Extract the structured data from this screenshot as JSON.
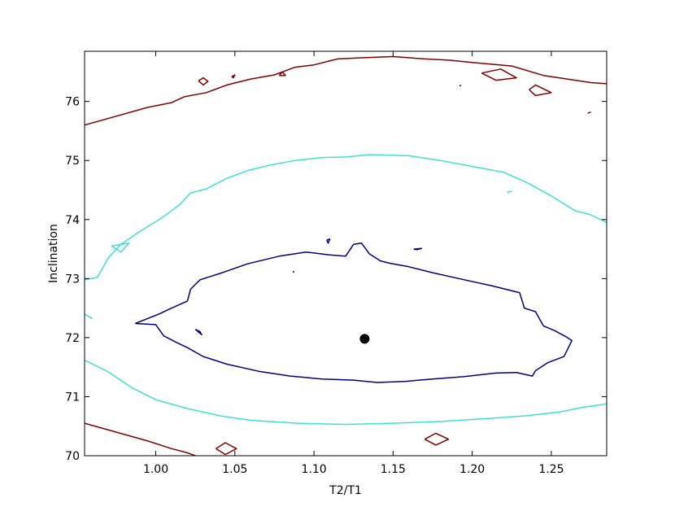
{
  "chart_data": {
    "type": "contour",
    "title": "",
    "xlabel": "T2/T1",
    "ylabel": "Inclination",
    "xlim": [
      0.955,
      1.285
    ],
    "ylim": [
      70.0,
      76.85
    ],
    "x_ticks": [
      {
        "value": 1.0,
        "label": "1.00"
      },
      {
        "value": 1.05,
        "label": "1.05"
      },
      {
        "value": 1.1,
        "label": "1.10"
      },
      {
        "value": 1.15,
        "label": "1.15"
      },
      {
        "value": 1.2,
        "label": "1.20"
      },
      {
        "value": 1.25,
        "label": "1.25"
      }
    ],
    "y_ticks": [
      {
        "value": 70,
        "label": "70"
      },
      {
        "value": 71,
        "label": "71"
      },
      {
        "value": 72,
        "label": "72"
      },
      {
        "value": 73,
        "label": "73"
      },
      {
        "value": 74,
        "label": "74"
      },
      {
        "value": 75,
        "label": "75"
      },
      {
        "value": 76,
        "label": "76"
      }
    ],
    "grid": false,
    "legend": "none",
    "best_fit_point": {
      "x": 1.132,
      "y": 71.98,
      "color": "#000000"
    },
    "contours": [
      {
        "level": "inner",
        "color": "#000080",
        "paths": [
          [
            [
              0.987,
              72.24
            ],
            [
              1.0,
              72.22
            ],
            [
              1.005,
              72.03
            ],
            [
              1.013,
              71.92
            ],
            [
              1.02,
              71.83
            ],
            [
              1.03,
              71.68
            ],
            [
              1.045,
              71.55
            ],
            [
              1.065,
              71.43
            ],
            [
              1.085,
              71.35
            ],
            [
              1.105,
              71.3
            ],
            [
              1.125,
              71.28
            ],
            [
              1.14,
              71.24
            ],
            [
              1.158,
              71.26
            ],
            [
              1.175,
              71.3
            ],
            [
              1.195,
              71.34
            ],
            [
              1.215,
              71.4
            ],
            [
              1.228,
              71.41
            ],
            [
              1.238,
              71.35
            ],
            [
              1.24,
              71.44
            ],
            [
              1.248,
              71.58
            ],
            [
              1.258,
              71.68
            ],
            [
              1.263,
              71.95
            ],
            [
              1.259,
              72.02
            ],
            [
              1.252,
              72.12
            ],
            [
              1.245,
              72.2
            ],
            [
              1.24,
              72.44
            ],
            [
              1.233,
              72.5
            ],
            [
              1.23,
              72.76
            ],
            [
              1.212,
              72.88
            ],
            [
              1.195,
              72.98
            ],
            [
              1.175,
              73.1
            ],
            [
              1.16,
              73.2
            ],
            [
              1.148,
              73.26
            ],
            [
              1.142,
              73.3
            ],
            [
              1.135,
              73.42
            ],
            [
              1.13,
              73.6
            ],
            [
              1.125,
              73.58
            ],
            [
              1.12,
              73.38
            ],
            [
              1.11,
              73.4
            ],
            [
              1.095,
              73.45
            ],
            [
              1.078,
              73.38
            ],
            [
              1.058,
              73.25
            ],
            [
              1.042,
              73.1
            ],
            [
              1.028,
              72.98
            ],
            [
              1.022,
              72.82
            ],
            [
              1.02,
              72.62
            ],
            [
              1.01,
              72.5
            ],
            [
              1.002,
              72.4
            ],
            [
              0.987,
              72.24
            ]
          ],
          [
            [
              1.025,
              72.14
            ],
            [
              1.028,
              72.1
            ],
            [
              1.029,
              72.05
            ],
            [
              1.025,
              72.14
            ]
          ],
          [
            [
              1.108,
              73.65
            ],
            [
              1.109,
              73.6
            ],
            [
              1.11,
              73.67
            ],
            [
              1.108,
              73.65
            ]
          ],
          [
            [
              1.163,
              73.5
            ],
            [
              1.168,
              73.51
            ],
            [
              1.165,
              73.49
            ],
            [
              1.163,
              73.5
            ]
          ],
          [
            [
              1.087,
              73.1
            ],
            [
              1.087,
              73.13
            ]
          ]
        ]
      },
      {
        "level": "middle",
        "color": "#40e0d0",
        "paths": [
          [
            [
              0.955,
              72.98
            ],
            [
              0.963,
              73.02
            ],
            [
              0.97,
              73.35
            ],
            [
              0.978,
              73.58
            ],
            [
              0.99,
              73.8
            ],
            [
              1.005,
              74.05
            ],
            [
              1.015,
              74.25
            ],
            [
              1.022,
              74.45
            ],
            [
              1.032,
              74.52
            ],
            [
              1.045,
              74.7
            ],
            [
              1.058,
              74.83
            ],
            [
              1.072,
              74.92
            ],
            [
              1.088,
              75.0
            ],
            [
              1.105,
              75.05
            ],
            [
              1.12,
              75.06
            ],
            [
              1.135,
              75.1
            ],
            [
              1.16,
              75.08
            ],
            [
              1.18,
              75.0
            ],
            [
              1.2,
              74.9
            ],
            [
              1.22,
              74.8
            ],
            [
              1.235,
              74.62
            ],
            [
              1.25,
              74.4
            ],
            [
              1.265,
              74.15
            ],
            [
              1.275,
              74.08
            ],
            [
              1.285,
              73.95
            ]
          ],
          [
            [
              0.955,
              72.4
            ],
            [
              0.96,
              72.32
            ]
          ],
          [
            [
              0.955,
              71.62
            ],
            [
              0.97,
              71.42
            ],
            [
              0.985,
              71.15
            ],
            [
              1.0,
              70.95
            ],
            [
              1.02,
              70.8
            ],
            [
              1.04,
              70.68
            ],
            [
              1.06,
              70.6
            ],
            [
              1.09,
              70.55
            ],
            [
              1.12,
              70.53
            ],
            [
              1.15,
              70.55
            ],
            [
              1.18,
              70.58
            ],
            [
              1.21,
              70.63
            ],
            [
              1.235,
              70.68
            ],
            [
              1.255,
              70.74
            ],
            [
              1.27,
              70.82
            ],
            [
              1.285,
              70.88
            ]
          ],
          [
            [
              0.972,
              73.55
            ],
            [
              0.978,
              73.45
            ],
            [
              0.983,
              73.6
            ],
            [
              0.972,
              73.55
            ]
          ],
          [
            [
              1.222,
              74.46
            ],
            [
              1.225,
              74.48
            ]
          ]
        ]
      },
      {
        "level": "outer",
        "color": "#800000",
        "paths": [
          [
            [
              0.955,
              75.6
            ],
            [
              0.975,
              75.75
            ],
            [
              0.995,
              75.9
            ],
            [
              1.01,
              75.98
            ],
            [
              1.018,
              76.08
            ],
            [
              1.032,
              76.15
            ],
            [
              1.045,
              76.28
            ],
            [
              1.06,
              76.38
            ],
            [
              1.075,
              76.45
            ],
            [
              1.088,
              76.58
            ],
            [
              1.1,
              76.62
            ],
            [
              1.115,
              76.72
            ],
            [
              1.13,
              76.74
            ],
            [
              1.15,
              76.76
            ],
            [
              1.17,
              76.72
            ],
            [
              1.185,
              76.7
            ],
            [
              1.2,
              76.66
            ],
            [
              1.225,
              76.6
            ],
            [
              1.245,
              76.44
            ],
            [
              1.26,
              76.38
            ],
            [
              1.275,
              76.32
            ],
            [
              1.285,
              76.3
            ]
          ],
          [
            [
              0.955,
              70.55
            ],
            [
              0.975,
              70.4
            ],
            [
              0.995,
              70.25
            ],
            [
              1.01,
              70.12
            ],
            [
              1.02,
              70.05
            ],
            [
              1.025,
              70.0
            ]
          ],
          [
            [
              1.038,
              70.12
            ],
            [
              1.044,
              70.22
            ],
            [
              1.051,
              70.12
            ],
            [
              1.044,
              70.02
            ],
            [
              1.038,
              70.12
            ]
          ],
          [
            [
              1.17,
              70.28
            ],
            [
              1.177,
              70.38
            ],
            [
              1.185,
              70.28
            ],
            [
              1.177,
              70.18
            ],
            [
              1.17,
              70.28
            ]
          ],
          [
            [
              1.027,
              76.35
            ],
            [
              1.03,
              76.4
            ],
            [
              1.033,
              76.34
            ],
            [
              1.03,
              76.28
            ],
            [
              1.027,
              76.35
            ]
          ],
          [
            [
              1.048,
              76.42
            ],
            [
              1.05,
              76.45
            ],
            [
              1.049,
              76.4
            ],
            [
              1.048,
              76.42
            ]
          ],
          [
            [
              1.078,
              76.44
            ],
            [
              1.08,
              76.5
            ],
            [
              1.082,
              76.44
            ],
            [
              1.078,
              76.44
            ]
          ],
          [
            [
              1.236,
              76.2
            ],
            [
              1.24,
              76.1
            ],
            [
              1.25,
              76.15
            ],
            [
              1.24,
              76.28
            ],
            [
              1.236,
              76.2
            ]
          ],
          [
            [
              1.206,
              76.48
            ],
            [
              1.215,
              76.36
            ],
            [
              1.228,
              76.4
            ],
            [
              1.218,
              76.55
            ],
            [
              1.206,
              76.48
            ]
          ],
          [
            [
              1.192,
              76.26
            ],
            [
              1.193,
              76.28
            ]
          ],
          [
            [
              1.273,
              75.8
            ],
            [
              1.275,
              75.82
            ]
          ]
        ]
      }
    ]
  }
}
